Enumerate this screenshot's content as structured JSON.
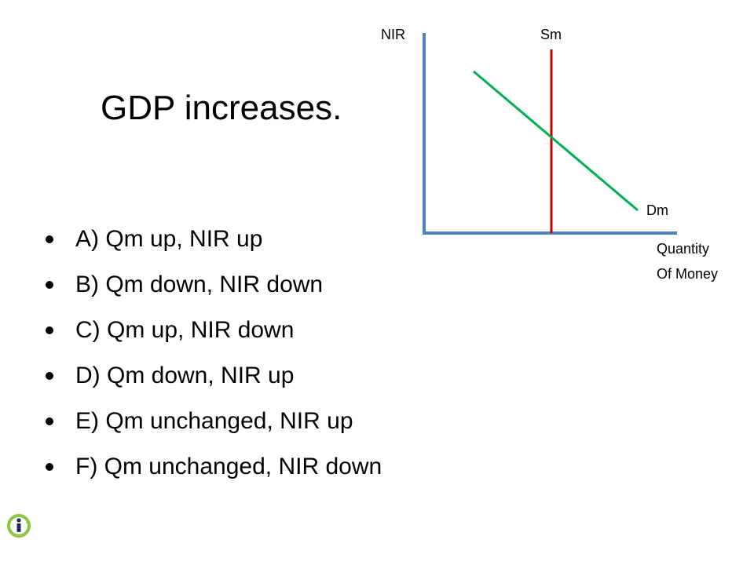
{
  "slide": {
    "title": "GDP increases.",
    "options": [
      "A) Qm up, NIR up",
      "B) Qm down, NIR down",
      "C) Qm up, NIR down",
      "D) Qm down, NIR up",
      "E) Qm unchanged, NIR up",
      "F) Qm unchanged, NIR down"
    ]
  },
  "diagram": {
    "y_axis_label": "NIR",
    "x_axis_label_line1": "Quantity",
    "x_axis_label_line2": "Of Money",
    "supply_label": "Sm",
    "demand_label": "Dm",
    "colors": {
      "axes": "#4f81bd",
      "supply": "#c00000",
      "demand": "#00b050"
    }
  },
  "logo": {
    "icon": "info-logo-icon",
    "colors": {
      "circle": "#8cc63f",
      "letter": "#1f2d5c"
    }
  }
}
